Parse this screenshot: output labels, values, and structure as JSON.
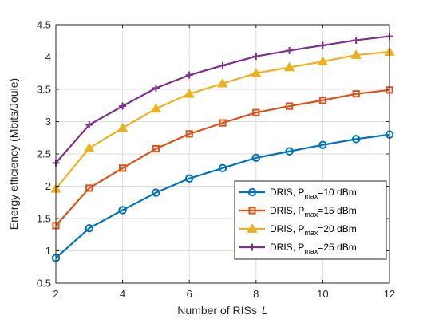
{
  "chart_data": {
    "type": "line",
    "title": "",
    "xlabel": "Number of RISs",
    "xlabel_symbol": "L",
    "ylabel": "Energy efficiency (Mbits/Joule)",
    "xlim": [
      2,
      12
    ],
    "ylim": [
      0.5,
      4.5
    ],
    "xticks": [
      2,
      4,
      6,
      8,
      10,
      12
    ],
    "yticks": [
      0.5,
      1,
      1.5,
      2,
      2.5,
      3,
      3.5,
      4,
      4.5
    ],
    "grid": true,
    "legend_position": "lower-right",
    "x": [
      2,
      3,
      4,
      5,
      6,
      7,
      8,
      9,
      10,
      11,
      12
    ],
    "series": [
      {
        "legend_prefix": "DRIS, P",
        "legend_sub": "max",
        "legend_suffix": "=10 dBm",
        "color": "#0072BD",
        "marker": "circle",
        "values": [
          0.89,
          1.35,
          1.63,
          1.9,
          2.12,
          2.28,
          2.44,
          2.54,
          2.64,
          2.73,
          2.8
        ]
      },
      {
        "legend_prefix": "DRIS, P",
        "legend_sub": "max",
        "legend_suffix": "=15 dBm",
        "color": "#D95319",
        "marker": "square",
        "values": [
          1.39,
          1.97,
          2.28,
          2.58,
          2.81,
          2.98,
          3.14,
          3.24,
          3.33,
          3.43,
          3.49
        ]
      },
      {
        "legend_prefix": "DRIS, P",
        "legend_sub": "max",
        "legend_suffix": "=20 dBm",
        "color": "#EDB120",
        "marker": "triangle",
        "values": [
          1.96,
          2.59,
          2.9,
          3.2,
          3.43,
          3.59,
          3.75,
          3.84,
          3.93,
          4.03,
          4.08
        ]
      },
      {
        "legend_prefix": "DRIS, P",
        "legend_sub": "max",
        "legend_suffix": "=25 dBm",
        "color": "#7E2F8E",
        "marker": "plus",
        "values": [
          2.36,
          2.95,
          3.24,
          3.52,
          3.72,
          3.87,
          4.01,
          4.1,
          4.18,
          4.26,
          4.32
        ]
      }
    ]
  }
}
